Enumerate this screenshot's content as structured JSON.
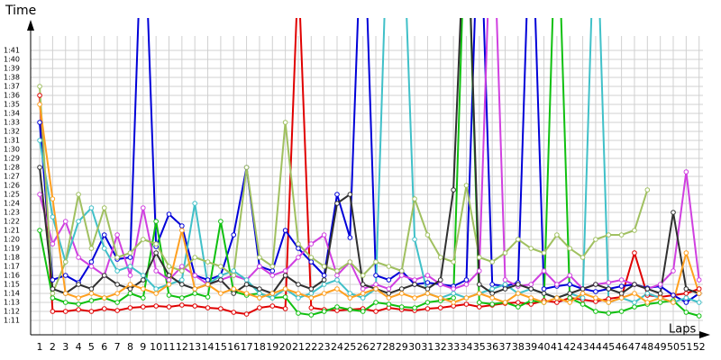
{
  "chart_data": {
    "type": "line",
    "y_label": "Time",
    "x_label": "Laps",
    "xlim": [
      0.3,
      52.3
    ],
    "ylim": [
      69.4,
      104.6
    ],
    "x": [
      1,
      2,
      3,
      4,
      5,
      6,
      7,
      8,
      9,
      10,
      11,
      12,
      13,
      14,
      15,
      16,
      17,
      18,
      19,
      20,
      21,
      22,
      23,
      24,
      25,
      26,
      27,
      28,
      29,
      30,
      31,
      32,
      33,
      34,
      35,
      36,
      37,
      38,
      39,
      40,
      41,
      42,
      43,
      44,
      45,
      46,
      47,
      48,
      49,
      50,
      51,
      52
    ],
    "xticks": [
      1,
      2,
      3,
      4,
      5,
      6,
      7,
      8,
      9,
      10,
      11,
      12,
      13,
      14,
      15,
      16,
      17,
      18,
      19,
      20,
      21,
      22,
      23,
      24,
      25,
      26,
      27,
      28,
      29,
      30,
      31,
      32,
      33,
      34,
      35,
      36,
      37,
      38,
      39,
      40,
      41,
      42,
      43,
      44,
      45,
      46,
      47,
      48,
      49,
      50,
      51,
      52
    ],
    "yticks": [
      {
        "value": 71,
        "label": "1:11"
      },
      {
        "value": 72,
        "label": "1:12"
      },
      {
        "value": 73,
        "label": "1:13"
      },
      {
        "value": 74,
        "label": "1:14"
      },
      {
        "value": 75,
        "label": "1:15"
      },
      {
        "value": 76,
        "label": "1:16"
      },
      {
        "value": 77,
        "label": "1:17"
      },
      {
        "value": 78,
        "label": "1:18"
      },
      {
        "value": 79,
        "label": "1:19"
      },
      {
        "value": 80,
        "label": "1:20"
      },
      {
        "value": 81,
        "label": "1:21"
      },
      {
        "value": 82,
        "label": "1:22"
      },
      {
        "value": 83,
        "label": "1:23"
      },
      {
        "value": 84,
        "label": "1:24"
      },
      {
        "value": 85,
        "label": "1:25"
      },
      {
        "value": 86,
        "label": "1:26"
      },
      {
        "value": 87,
        "label": "1:27"
      },
      {
        "value": 88,
        "label": "1:28"
      },
      {
        "value": 89,
        "label": "1:29"
      },
      {
        "value": 90,
        "label": "1:30"
      },
      {
        "value": 91,
        "label": "1:31"
      },
      {
        "value": 92,
        "label": "1:32"
      },
      {
        "value": 93,
        "label": "1:33"
      },
      {
        "value": 94,
        "label": "1:34"
      },
      {
        "value": 95,
        "label": "1:35"
      },
      {
        "value": 96,
        "label": "1:36"
      },
      {
        "value": 97,
        "label": "1:37"
      },
      {
        "value": 98,
        "label": "1:38"
      },
      {
        "value": 99,
        "label": "1:39"
      },
      {
        "value": 100,
        "label": "1:40"
      },
      {
        "value": 101,
        "label": "1:41"
      }
    ],
    "grid": true,
    "series": [
      {
        "color": "#e00000",
        "values": [
          96,
          72.0,
          72.0,
          72.2,
          72.0,
          72.3,
          72.1,
          72.4,
          72.5,
          72.6,
          72.5,
          72.7,
          72.6,
          72.4,
          72.3,
          71.9,
          71.7,
          72.4,
          72.6,
          72.3,
          110,
          72.4,
          72.2,
          72.1,
          72.2,
          72.3,
          72.0,
          72.4,
          72.2,
          72.1,
          72.3,
          72.4,
          72.6,
          72.8,
          72.5,
          72.7,
          72.9,
          73.0,
          72.8,
          73.2,
          73.0,
          73.5,
          73.3,
          73.1,
          73.4,
          73.6,
          78.5,
          73.8,
          73.6,
          73.8,
          74.0,
          74.5
        ]
      },
      {
        "color": "#0000d8",
        "values": [
          93,
          75.5,
          76.0,
          75.2,
          77.5,
          80.5,
          77.8,
          78.0,
          120,
          79.2,
          82.8,
          81.5,
          76.0,
          75.5,
          76.0,
          80.5,
          88.0,
          77.0,
          76.5,
          81.0,
          79.0,
          77.5,
          76.0,
          85.0,
          80.2,
          120,
          76.0,
          75.5,
          76.5,
          75.0,
          75.2,
          75.0,
          74.8,
          75.5,
          120,
          75.0,
          74.8,
          75.2,
          120,
          74.5,
          74.8,
          75.0,
          74.5,
          74.2,
          74.5,
          74.8,
          75.0,
          74.6,
          74.8,
          73.8,
          73.0,
          74.0
        ]
      },
      {
        "color": "#10c010",
        "values": [
          81,
          73.5,
          73.0,
          72.8,
          73.2,
          73.5,
          73.0,
          74.0,
          73.5,
          82.0,
          73.8,
          73.5,
          74.0,
          73.6,
          82.0,
          74.2,
          73.8,
          74.0,
          73.5,
          73.6,
          71.8,
          71.6,
          72.0,
          72.5,
          72.2,
          72.0,
          73.0,
          72.8,
          72.5,
          72.4,
          73.0,
          73.2,
          73.5,
          120,
          73.0,
          72.8,
          73.0,
          72.5,
          73.2,
          73.0,
          120,
          73.5,
          72.8,
          72.0,
          71.8,
          72.0,
          72.5,
          72.8,
          73.0,
          73.2,
          71.9,
          71.5
        ]
      },
      {
        "color": "#d040e0",
        "values": [
          85,
          79.5,
          82.0,
          78.0,
          77.0,
          76.0,
          80.5,
          76.0,
          83.5,
          76.5,
          75.5,
          77.0,
          76.0,
          75.0,
          75.5,
          76.0,
          75.5,
          77.0,
          76.0,
          76.5,
          78.0,
          79.5,
          80.5,
          76.0,
          77.5,
          74.5,
          75.0,
          74.5,
          76.0,
          75.5,
          76.0,
          75.0,
          74.5,
          75.0,
          76.5,
          120,
          75.5,
          74.8,
          75.0,
          76.5,
          75.0,
          76.0,
          74.5,
          75.0,
          75.2,
          75.5,
          75.0,
          74.5,
          75.0,
          76.5,
          87.5,
          75.5
        ]
      },
      {
        "color": "#40c0c8",
        "values": [
          91,
          82.5,
          77.5,
          82.0,
          83.5,
          79.0,
          76.5,
          77.0,
          76.0,
          74.5,
          75.0,
          75.5,
          84.0,
          75.0,
          76.0,
          76.5,
          75.5,
          74.0,
          73.5,
          74.5,
          73.5,
          74.0,
          75.0,
          75.5,
          74.0,
          73.5,
          74.5,
          120,
          120,
          80.0,
          74.0,
          73.5,
          74.0,
          73.5,
          74.0,
          74.5,
          75.0,
          74.0,
          74.5,
          74.0,
          73.5,
          74.0,
          73.5,
          120,
          73.0,
          73.5,
          73.0,
          74.0,
          73.5,
          73.0,
          73.5,
          73.0
        ]
      },
      {
        "color": "#a0c060",
        "values": [
          97,
          74.0,
          77.5,
          85.0,
          79.0,
          83.5,
          78.0,
          78.5,
          80.0,
          79.5,
          77.0,
          76.5,
          78.0,
          77.5,
          77.0,
          76.0,
          88.0,
          78.0,
          77.0,
          93.0,
          79.5,
          78.0,
          77.0,
          76.5,
          77.5,
          76.0,
          77.5,
          77.0,
          76.5,
          84.5,
          80.5,
          78.0,
          77.5,
          86.0,
          78.0,
          77.5,
          78.5,
          80.0,
          79.0,
          78.5,
          80.5,
          79.0,
          78.0,
          80.0,
          80.5,
          80.5,
          81.0,
          85.5,
          null,
          null,
          null,
          null
        ]
      },
      {
        "color": "#303030",
        "values": [
          88,
          74.5,
          74.0,
          75.0,
          74.5,
          76.0,
          75.0,
          74.5,
          75.5,
          78.5,
          76.0,
          75.0,
          74.5,
          75.0,
          75.5,
          74.0,
          75.0,
          74.5,
          74.0,
          76.0,
          75.0,
          74.5,
          75.5,
          84.0,
          85.0,
          75.0,
          74.5,
          74.0,
          74.5,
          75.0,
          74.5,
          75.5,
          85.5,
          120,
          75.0,
          74.0,
          74.5,
          75.0,
          74.5,
          74.0,
          73.5,
          74.0,
          74.5,
          75.0,
          74.5,
          74.0,
          75.0,
          74.5,
          74.0,
          83.0,
          74.5,
          74.0
        ]
      },
      {
        "color": "#ffa020",
        "values": [
          95,
          84.5,
          74.0,
          73.5,
          74.0,
          73.5,
          74.0,
          75.0,
          74.5,
          74.0,
          75.0,
          81.0,
          74.5,
          75.0,
          74.0,
          74.5,
          74.0,
          73.5,
          74.0,
          74.5,
          74.0,
          73.5,
          74.0,
          74.5,
          73.5,
          74.0,
          74.5,
          73.5,
          74.0,
          73.5,
          74.0,
          73.5,
          73.0,
          73.5,
          74.0,
          73.5,
          73.0,
          74.0,
          73.5,
          73.0,
          73.5,
          73.0,
          74.0,
          73.5,
          73.0,
          73.5,
          74.0,
          73.0,
          73.5,
          73.0,
          78.5,
          74.0
        ]
      }
    ]
  }
}
